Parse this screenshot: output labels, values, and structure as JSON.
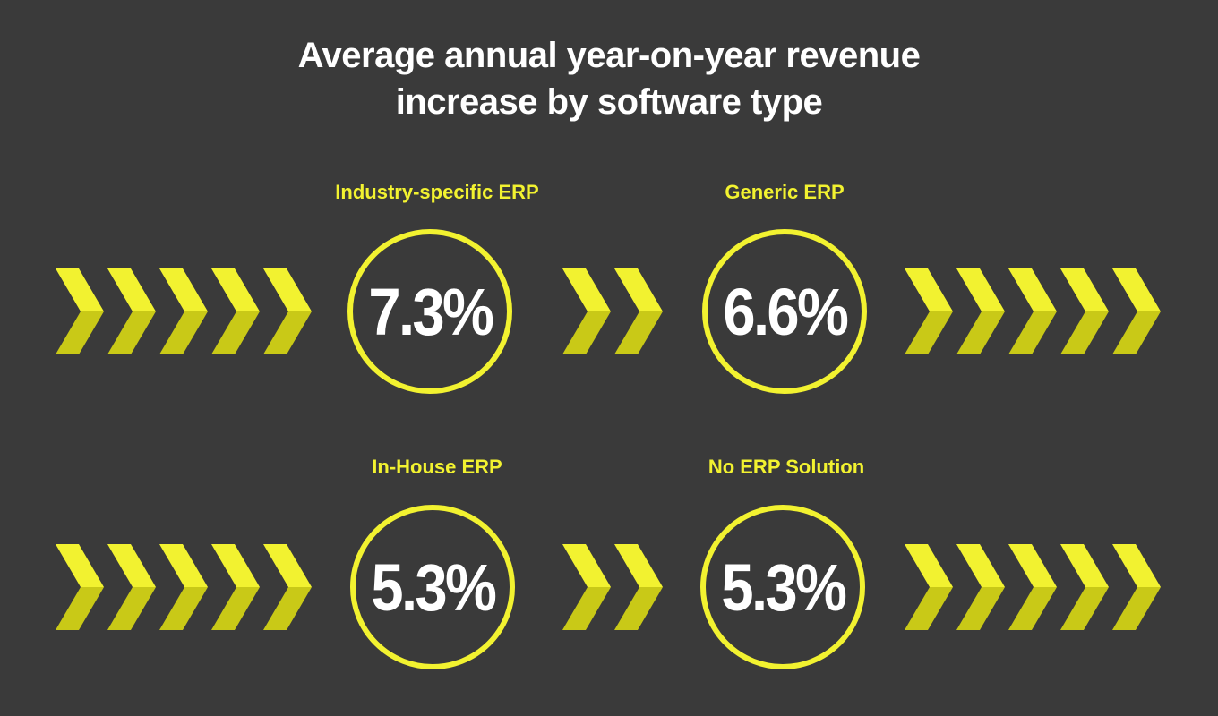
{
  "title_line1": "Average annual year-on-year revenue",
  "title_line2": "increase by software type",
  "accent_color": "#f2f230",
  "accent_dark": "#c9c917",
  "background_color": "#3a3a3a",
  "chart_data": {
    "type": "table",
    "title": "Average annual year-on-year revenue increase by software type",
    "unit": "%",
    "categories": [
      "Industry-specific ERP",
      "Generic ERP",
      "In-House ERP",
      "No ERP Solution"
    ],
    "values": [
      7.3,
      6.6,
      5.3,
      5.3
    ],
    "labels": [
      "7.3%",
      "6.6%",
      "5.3%",
      "5.3%"
    ]
  }
}
